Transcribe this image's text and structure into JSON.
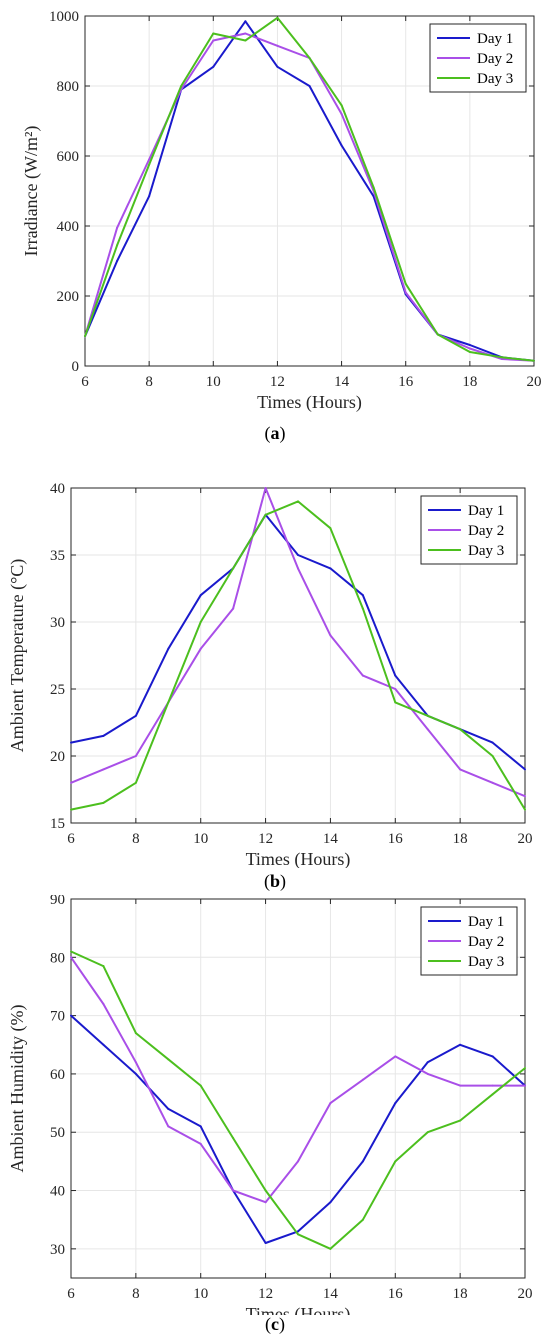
{
  "colors": {
    "day1": "#1a1acc",
    "day2": "#a94fe8",
    "day3": "#4cbf1e"
  },
  "captions": [
    "a",
    "b",
    "c"
  ],
  "chart_data": [
    {
      "type": "line",
      "title": "",
      "xlabel": "Times (Hours)",
      "ylabel": "Irradiance (W/m²)",
      "xlim": [
        6,
        20
      ],
      "ylim": [
        0,
        1000
      ],
      "xticks": [
        6,
        8,
        10,
        12,
        14,
        16,
        18,
        20
      ],
      "yticks": [
        0,
        200,
        400,
        600,
        800,
        1000
      ],
      "grid": true,
      "legend_position": "top-right",
      "x": [
        6,
        7,
        8,
        9,
        10,
        11,
        12,
        13,
        14,
        15,
        16,
        17,
        18,
        19,
        20
      ],
      "series": [
        {
          "name": "Day 1",
          "color_key": "day1",
          "values": [
            85,
            300,
            485,
            790,
            855,
            985,
            855,
            800,
            630,
            485,
            205,
            90,
            60,
            25,
            15
          ]
        },
        {
          "name": "Day 2",
          "color_key": "day2",
          "values": [
            85,
            395,
            590,
            790,
            930,
            950,
            915,
            880,
            720,
            500,
            210,
            90,
            50,
            20,
            15
          ]
        },
        {
          "name": "Day 3",
          "color_key": "day3",
          "values": [
            85,
            345,
            575,
            800,
            950,
            930,
            995,
            880,
            745,
            510,
            235,
            90,
            40,
            25,
            15
          ]
        }
      ]
    },
    {
      "type": "line",
      "title": "",
      "xlabel": "Times (Hours)",
      "ylabel": "Ambient Temperature (°C)",
      "xlim": [
        6,
        20
      ],
      "ylim": [
        15,
        40
      ],
      "xticks": [
        6,
        8,
        10,
        12,
        14,
        16,
        18,
        20
      ],
      "yticks": [
        15,
        20,
        25,
        30,
        35,
        40
      ],
      "grid": true,
      "legend_position": "top-right",
      "x": [
        6,
        7,
        8,
        9,
        10,
        11,
        12,
        13,
        14,
        15,
        16,
        17,
        18,
        19,
        20
      ],
      "series": [
        {
          "name": "Day 1",
          "color_key": "day1",
          "values": [
            21,
            21.5,
            23,
            28,
            32,
            34,
            38,
            35,
            34,
            32,
            26,
            23,
            22,
            21,
            19
          ]
        },
        {
          "name": "Day 2",
          "color_key": "day2",
          "values": [
            18,
            19,
            20,
            24,
            28,
            31,
            40,
            34,
            29,
            26,
            25,
            22,
            19,
            18,
            17
          ]
        },
        {
          "name": "Day 3",
          "color_key": "day3",
          "values": [
            16,
            16.5,
            18,
            24,
            30,
            34,
            38,
            39,
            37,
            31,
            24,
            23,
            22,
            20,
            16
          ]
        }
      ]
    },
    {
      "type": "line",
      "title": "",
      "xlabel": "Times (Hours)",
      "ylabel": "Ambient Humidity (%)",
      "xlim": [
        6,
        20
      ],
      "ylim": [
        25,
        90
      ],
      "xticks": [
        6,
        8,
        10,
        12,
        14,
        16,
        18,
        20
      ],
      "yticks": [
        30,
        40,
        50,
        60,
        70,
        80,
        90
      ],
      "grid": true,
      "legend_position": "top-right",
      "x": [
        6,
        7,
        8,
        9,
        10,
        11,
        12,
        13,
        14,
        15,
        16,
        17,
        18,
        19,
        20
      ],
      "series": [
        {
          "name": "Day 1",
          "color_key": "day1",
          "values": [
            70,
            65,
            60,
            54,
            51,
            40,
            31,
            33,
            38,
            45,
            55,
            62,
            65,
            63,
            58
          ]
        },
        {
          "name": "Day 2",
          "color_key": "day2",
          "values": [
            80,
            72,
            62,
            51,
            48,
            40,
            38,
            45,
            55,
            59,
            63,
            60,
            58,
            58,
            58
          ]
        },
        {
          "name": "Day 3",
          "color_key": "day3",
          "values": [
            81,
            78.5,
            67,
            62.5,
            58,
            49,
            40,
            32.5,
            30,
            35,
            45,
            50,
            52,
            56.5,
            61
          ]
        }
      ]
    }
  ]
}
